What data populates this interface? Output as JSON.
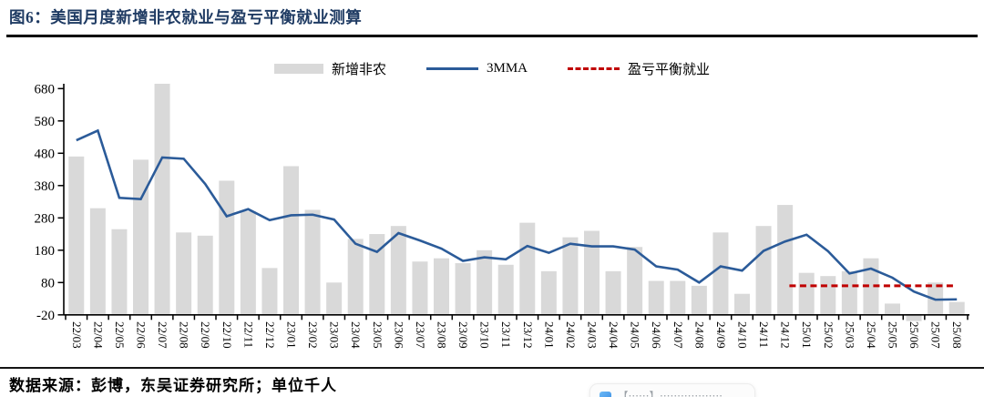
{
  "title": "图6：美国月度新增非农就业与盈亏平衡就业测算",
  "footer": {
    "source_text": "数据来源：彭博，东吴证券研究所；单位千人"
  },
  "watermark": {
    "icon": "blue-app-icon",
    "text": "【⋯⋯】⋯⋯⋯⋯⋯⋯"
  },
  "chart_data": {
    "type": "bar",
    "subtype": "bar+line combo",
    "legend_position": "top",
    "grid": false,
    "ylim": [
      -20,
      680
    ],
    "yticks": [
      680,
      580,
      480,
      380,
      280,
      180,
      80,
      -20
    ],
    "tick_label_rotation": 90,
    "categories": [
      "22/03",
      "22/04",
      "22/05",
      "22/06",
      "22/07",
      "22/08",
      "22/09",
      "22/10",
      "22/11",
      "22/12",
      "23/01",
      "23/02",
      "23/03",
      "23/04",
      "23/05",
      "23/06",
      "23/07",
      "23/08",
      "23/09",
      "23/10",
      "23/11",
      "23/12",
      "24/01",
      "24/02",
      "24/03",
      "24/04",
      "24/05",
      "24/06",
      "24/07",
      "24/08",
      "24/09",
      "24/10",
      "24/11",
      "24/12",
      "25/01",
      "25/02",
      "25/03",
      "25/04",
      "25/05",
      "25/06",
      "25/07",
      "25/08"
    ],
    "series": [
      {
        "name": "新增非农",
        "type": "bar",
        "color": "#d9d9d9",
        "values": [
          470,
          310,
          245,
          460,
          695,
          235,
          225,
          395,
          300,
          125,
          440,
          305,
          80,
          215,
          230,
          255,
          145,
          155,
          140,
          180,
          135,
          265,
          115,
          220,
          240,
          115,
          190,
          85,
          85,
          70,
          235,
          45,
          255,
          320,
          110,
          100,
          115,
          155,
          15,
          -15,
          80,
          20
        ]
      },
      {
        "name": "3MMA",
        "type": "line",
        "color": "#2b5b99",
        "values": [
          520,
          550,
          342,
          338,
          467,
          463,
          385,
          285,
          307,
          273,
          288,
          290,
          275,
          200,
          175,
          233,
          210,
          185,
          147,
          158,
          152,
          193,
          172,
          200,
          192,
          192,
          182,
          130,
          120,
          80,
          130,
          117,
          178,
          207,
          228,
          177,
          108,
          123,
          95,
          52,
          27,
          28
        ]
      },
      {
        "name": "盈亏平衡就业",
        "type": "dashed-line",
        "color": "#c00000",
        "value": 70,
        "start_category": "25/01",
        "end_category": "25/08",
        "start_index": 34,
        "end_index": 41
      }
    ]
  }
}
